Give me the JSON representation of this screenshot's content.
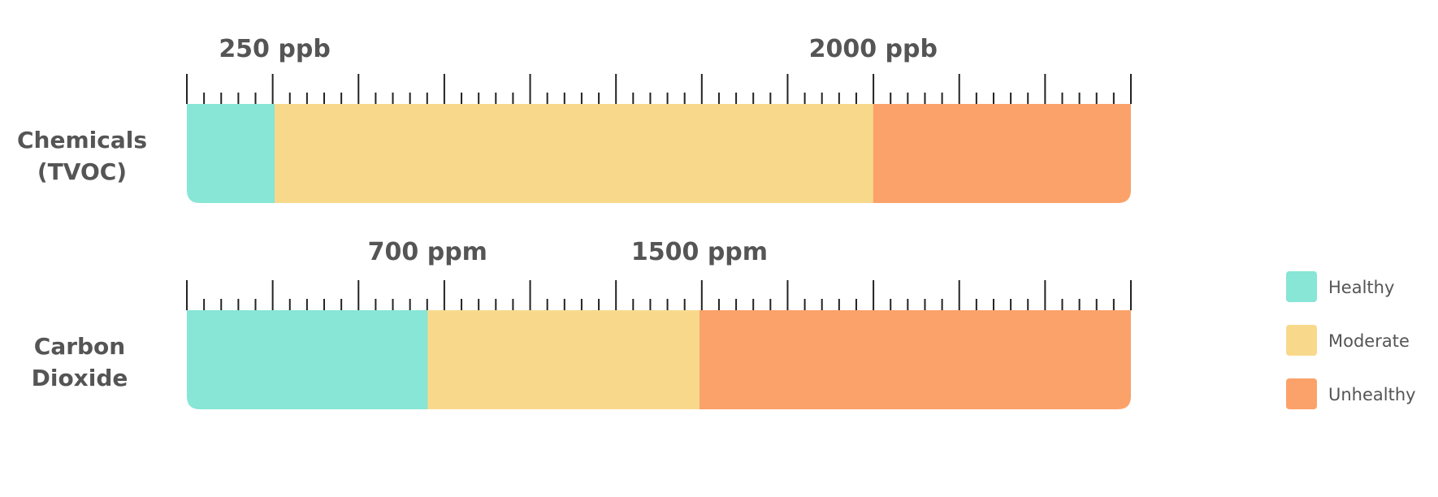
{
  "colors": {
    "healthy": "#87e6d6",
    "moderate": "#f8d98c",
    "unhealthy": "#fba26a",
    "text": "#555555",
    "tick": "#222222"
  },
  "chart_data": {
    "type": "bar",
    "orientation": "horizontal",
    "stacked": true,
    "rows": [
      {
        "label_lines": [
          "Chemicals",
          "(TVOC)"
        ],
        "segments": [
          {
            "category": "healthy",
            "fraction": 0.093
          },
          {
            "category": "moderate",
            "fraction": 0.634
          },
          {
            "category": "unhealthy",
            "fraction": 0.273
          }
        ],
        "thresholds": [
          {
            "label": "250 ppb",
            "fraction": 0.093
          },
          {
            "label": "2000 ppb",
            "fraction": 0.727
          }
        ]
      },
      {
        "label_lines": [
          "Carbon",
          "Dioxide"
        ],
        "segments": [
          {
            "category": "healthy",
            "fraction": 0.255
          },
          {
            "category": "moderate",
            "fraction": 0.288
          },
          {
            "category": "unhealthy",
            "fraction": 0.457
          }
        ],
        "thresholds": [
          {
            "label": "700 ppm",
            "fraction": 0.255
          },
          {
            "label": "1500 ppm",
            "fraction": 0.543
          }
        ]
      }
    ],
    "major_tick_divisions": 11,
    "minor_ticks_per_division": 4,
    "legend": {
      "position": "right",
      "entries": [
        {
          "label": "Healthy",
          "category": "healthy"
        },
        {
          "label": "Moderate",
          "category": "moderate"
        },
        {
          "label": "Unhealthy",
          "category": "unhealthy"
        }
      ]
    }
  }
}
